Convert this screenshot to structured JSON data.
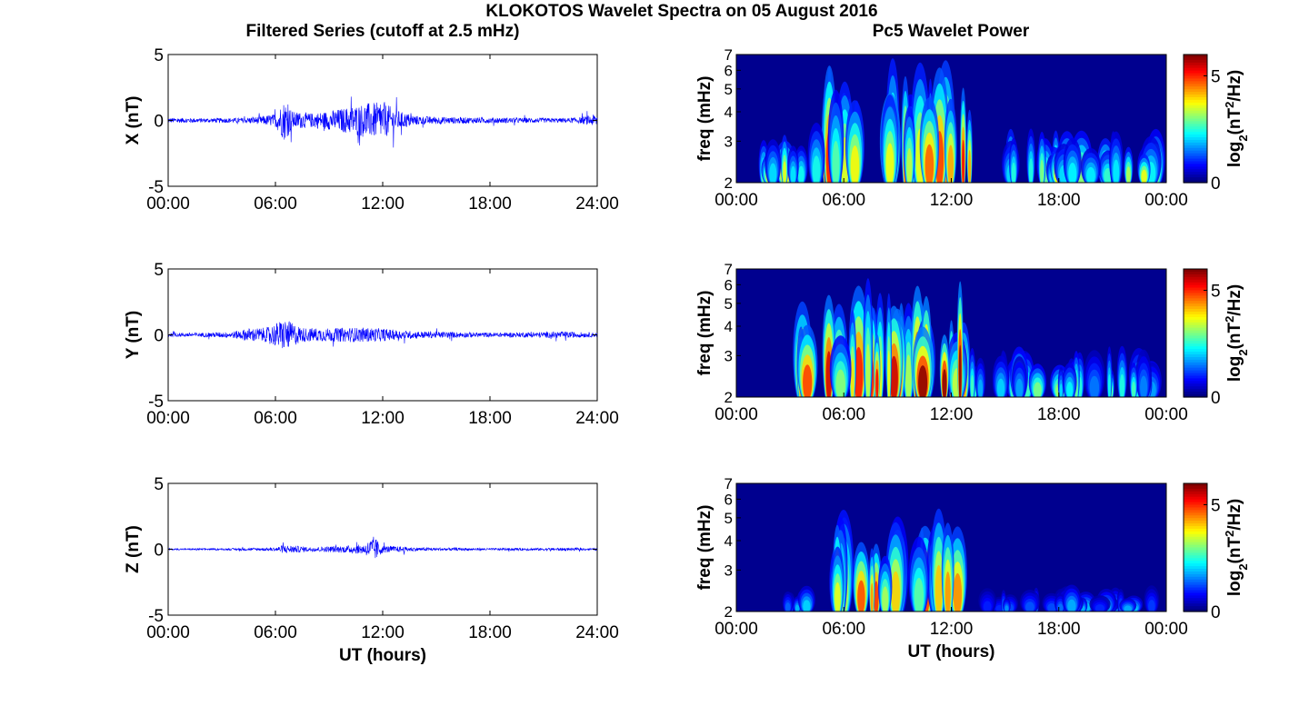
{
  "title": "KLOKOTOS Wavelet Spectra on 05 August 2016",
  "left_title": "Filtered Series (cutoff at 2.5 mHz)",
  "right_title": "Pc5 Wavelet Power",
  "colors": {
    "trace": "#0000ff",
    "axis": "#000000"
  },
  "chart_data": [
    {
      "type": "line",
      "component": "X",
      "ylabel": "X (nT)",
      "xlabel": "",
      "xlim": [
        "00:00",
        "24:00"
      ],
      "ylim": [
        -5,
        5
      ],
      "x_ticks": [
        "00:00",
        "06:00",
        "12:00",
        "18:00",
        "24:00"
      ],
      "y_ticks": [
        "-5",
        "0",
        "5"
      ],
      "envelope": {
        "hours": [
          0,
          2,
          4,
          5,
          6,
          6.5,
          7,
          8,
          9,
          10,
          11,
          12,
          13,
          14,
          16,
          18,
          20,
          22,
          23,
          24
        ],
        "amplitude": [
          0.35,
          0.3,
          0.35,
          0.5,
          0.9,
          2.8,
          1.2,
          1.0,
          1.3,
          1.8,
          2.4,
          2.5,
          1.2,
          0.6,
          0.45,
          0.4,
          0.35,
          0.3,
          0.4,
          0.9
        ]
      }
    },
    {
      "type": "line",
      "component": "Y",
      "ylabel": "Y (nT)",
      "xlabel": "",
      "xlim": [
        "00:00",
        "24:00"
      ],
      "ylim": [
        -5,
        5
      ],
      "x_ticks": [
        "00:00",
        "06:00",
        "12:00",
        "18:00",
        "24:00"
      ],
      "y_ticks": [
        "-5",
        "0",
        "5"
      ],
      "envelope": {
        "hours": [
          0,
          2,
          3.5,
          4.5,
          5.5,
          6.5,
          7.5,
          9,
          10,
          11,
          12,
          13,
          14,
          16,
          18,
          20,
          22,
          24
        ],
        "amplitude": [
          0.25,
          0.3,
          0.4,
          0.9,
          1.0,
          2.2,
          1.0,
          0.9,
          1.0,
          1.0,
          0.9,
          0.6,
          0.5,
          0.4,
          0.3,
          0.35,
          0.45,
          0.3
        ]
      }
    },
    {
      "type": "line",
      "component": "Z",
      "ylabel": "Z (nT)",
      "xlabel": "UT (hours)",
      "xlim": [
        "00:00",
        "24:00"
      ],
      "ylim": [
        -5,
        5
      ],
      "x_ticks": [
        "00:00",
        "06:00",
        "12:00",
        "18:00",
        "24:00"
      ],
      "y_ticks": [
        "-5",
        "0",
        "5"
      ],
      "envelope": {
        "hours": [
          0,
          3,
          6,
          6.5,
          8,
          10,
          11,
          11.5,
          12,
          14,
          18,
          22,
          24
        ],
        "amplitude": [
          0.1,
          0.12,
          0.25,
          0.6,
          0.3,
          0.5,
          0.7,
          1.8,
          0.5,
          0.25,
          0.15,
          0.2,
          0.12
        ]
      }
    },
    {
      "type": "heatmap",
      "component": "X",
      "ylabel": "freq (mHz)",
      "xlabel": "",
      "x_ticks": [
        "00:00",
        "06:00",
        "12:00",
        "18:00",
        "00:00"
      ],
      "y_ticks": [
        "2",
        "3",
        "4",
        "5",
        "6",
        "7"
      ],
      "y_scale": "log",
      "ylim": [
        2,
        7
      ],
      "colorbar": {
        "label": "log2(nT^2/Hz)",
        "ticks": [
          "0",
          "5"
        ],
        "range": [
          0,
          6
        ],
        "colormap": "jet"
      },
      "hot_regions": [
        {
          "hours": [
            5,
            13.5
          ],
          "peak": 6,
          "fmax": 6.8
        },
        {
          "hours": [
            1.5,
            4.5
          ],
          "peak": 4.5,
          "fmax": 3.6
        },
        {
          "hours": [
            14,
            23.5
          ],
          "peak": 3.8,
          "fmax": 3.4
        }
      ]
    },
    {
      "type": "heatmap",
      "component": "Y",
      "ylabel": "freq (mHz)",
      "xlabel": "",
      "x_ticks": [
        "00:00",
        "06:00",
        "12:00",
        "18:00",
        "00:00"
      ],
      "y_ticks": [
        "2",
        "3",
        "4",
        "5",
        "6",
        "7"
      ],
      "y_scale": "log",
      "ylim": [
        2,
        7
      ],
      "colorbar": {
        "label": "log2(nT^2/Hz)",
        "ticks": [
          "0",
          "5"
        ],
        "range": [
          0,
          6
        ],
        "colormap": "jet"
      },
      "hot_regions": [
        {
          "hours": [
            3.5,
            13
          ],
          "peak": 6,
          "fmax": 6.5
        },
        {
          "hours": [
            13,
            23.5
          ],
          "peak": 3.2,
          "fmax": 3.3
        }
      ]
    },
    {
      "type": "heatmap",
      "component": "Z",
      "ylabel": "freq (mHz)",
      "xlabel": "UT (hours)",
      "x_ticks": [
        "00:00",
        "06:00",
        "12:00",
        "18:00",
        "00:00"
      ],
      "y_ticks": [
        "2",
        "3",
        "4",
        "5",
        "6",
        "7"
      ],
      "y_scale": "log",
      "ylim": [
        2,
        7
      ],
      "colorbar": {
        "label": "log2(nT^2/Hz)",
        "ticks": [
          "0",
          "5"
        ],
        "range": [
          0,
          6
        ],
        "colormap": "jet"
      },
      "hot_regions": [
        {
          "hours": [
            5.5,
            12.5
          ],
          "peak": 5.5,
          "fmax": 5.5
        },
        {
          "hours": [
            2.5,
            4
          ],
          "peak": 2.5,
          "fmax": 2.6
        },
        {
          "hours": [
            14,
            23.5
          ],
          "peak": 2,
          "fmax": 2.6
        }
      ]
    }
  ]
}
